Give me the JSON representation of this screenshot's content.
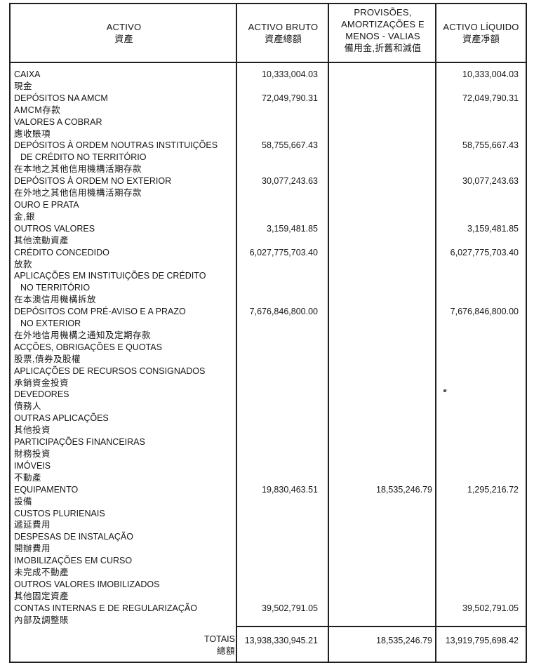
{
  "table": {
    "columns": [
      {
        "pt": "ACTIVO",
        "zh": "資產"
      },
      {
        "pt": "ACTIVO BRUTO",
        "zh": "資產總額"
      },
      {
        "pt_lines": [
          "PROVISÕES,",
          "AMORTIZAÇÕES E",
          "MENOS - VALIAS"
        ],
        "zh": "備用金,折舊和減值"
      },
      {
        "pt": "ACTIVO LÍQUIDO",
        "zh": "資產凈額"
      }
    ],
    "rows": [
      {
        "pt": [
          "CAIXA"
        ],
        "zh": "現金",
        "bruto": "10,333,004.03",
        "provisoes": "",
        "liquido": "10,333,004.03"
      },
      {
        "pt": [
          "DEPÓSITOS NA AMCM"
        ],
        "zh": "AMCM存款",
        "bruto": "72,049,790.31",
        "provisoes": "",
        "liquido": "72,049,790.31"
      },
      {
        "pt": [
          "VALORES A COBRAR"
        ],
        "zh": "應收賬項",
        "bruto": "",
        "provisoes": "",
        "liquido": ""
      },
      {
        "pt": [
          "DEPÓSITOS À ORDEM NOUTRAS INSTITUIÇÕES",
          "DE CRÉDITO NO TERRITÓRIO"
        ],
        "zh": "在本地之其他信用機構活期存款",
        "bruto": "58,755,667.43",
        "provisoes": "",
        "liquido": "58,755,667.43"
      },
      {
        "pt": [
          "DEPÓSITOS À ORDEM NO EXTERIOR"
        ],
        "zh": "在外地之其他信用機構活期存款",
        "bruto": "30,077,243.63",
        "provisoes": "",
        "liquido": "30,077,243.63"
      },
      {
        "pt": [
          "OURO E PRATA"
        ],
        "zh": "金,銀",
        "bruto": "",
        "provisoes": "",
        "liquido": ""
      },
      {
        "pt": [
          "OUTROS VALORES"
        ],
        "zh": "其他流動資產",
        "bruto": "3,159,481.85",
        "provisoes": "",
        "liquido": "3,159,481.85"
      },
      {
        "pt": [
          "CRÉDITO CONCEDIDO"
        ],
        "zh": "放款",
        "bruto": "6,027,775,703.40",
        "provisoes": "",
        "liquido": "6,027,775,703.40"
      },
      {
        "pt": [
          "APLICAÇÕES EM INSTITUIÇÕES DE CRÉDITO",
          "NO TERRITÓRIO"
        ],
        "zh": "在本澳信用機構拆放",
        "bruto": "",
        "provisoes": "",
        "liquido": ""
      },
      {
        "pt": [
          "DEPÓSITOS COM PRÉ-AVISO E A PRAZO",
          "NO EXTERIOR"
        ],
        "zh": "在外地信用機構之通知及定期存款",
        "bruto": "7,676,846,800.00",
        "provisoes": "",
        "liquido": "7,676,846,800.00"
      },
      {
        "pt": [
          "ACÇÕES, OBRIGAÇÕES E QUOTAS"
        ],
        "zh": "股票,債券及股權",
        "bruto": "",
        "provisoes": "",
        "liquido": ""
      },
      {
        "pt": [
          "APLICAÇÕES DE RECURSOS CONSIGNADOS"
        ],
        "zh": "承銷資金投資",
        "bruto": "",
        "provisoes": "",
        "liquido": ""
      },
      {
        "pt": [
          "DEVEDORES"
        ],
        "zh": "債務人",
        "bruto": "",
        "provisoes": "",
        "liquido": ""
      },
      {
        "pt": [
          "OUTRAS APLICAÇÕES"
        ],
        "zh": "其他投資",
        "bruto": "",
        "provisoes": "",
        "liquido": ""
      },
      {
        "pt": [
          "PARTICIPAÇÕES FINANCEIRAS"
        ],
        "zh": "財務投資",
        "bruto": "",
        "provisoes": "",
        "liquido": ""
      },
      {
        "pt": [
          "IMÓVEIS"
        ],
        "zh": "不動產",
        "bruto": "",
        "provisoes": "",
        "liquido": ""
      },
      {
        "pt": [
          "EQUIPAMENTO"
        ],
        "zh": "設備",
        "bruto": "19,830,463.51",
        "provisoes": "18,535,246.79",
        "liquido": "1,295,216.72"
      },
      {
        "pt": [
          "CUSTOS PLURIENAIS"
        ],
        "zh": "遞延費用",
        "bruto": "",
        "provisoes": "",
        "liquido": ""
      },
      {
        "pt": [
          "DESPESAS DE INSTALAÇÃO"
        ],
        "zh": "開辦費用",
        "bruto": "",
        "provisoes": "",
        "liquido": ""
      },
      {
        "pt": [
          "IMOBILIZAÇÕES EM CURSO"
        ],
        "zh": "未完成不動產",
        "bruto": "",
        "provisoes": "",
        "liquido": ""
      },
      {
        "pt": [
          "OUTROS VALORES IMOBILIZADOS"
        ],
        "zh": "其他固定資產",
        "bruto": "",
        "provisoes": "",
        "liquido": ""
      },
      {
        "pt": [
          "CONTAS INTERNAS E DE REGULARIZAÇÃO"
        ],
        "zh": "內部及調整賬",
        "bruto": "39,502,791.05",
        "provisoes": "",
        "liquido": "39,502,791.05"
      }
    ],
    "totals": {
      "pt": "TOTAIS",
      "zh": "總額",
      "bruto": "13,938,330,945.21",
      "provisoes": "18,535,246.79",
      "liquido": "13,919,795,698.42"
    }
  }
}
